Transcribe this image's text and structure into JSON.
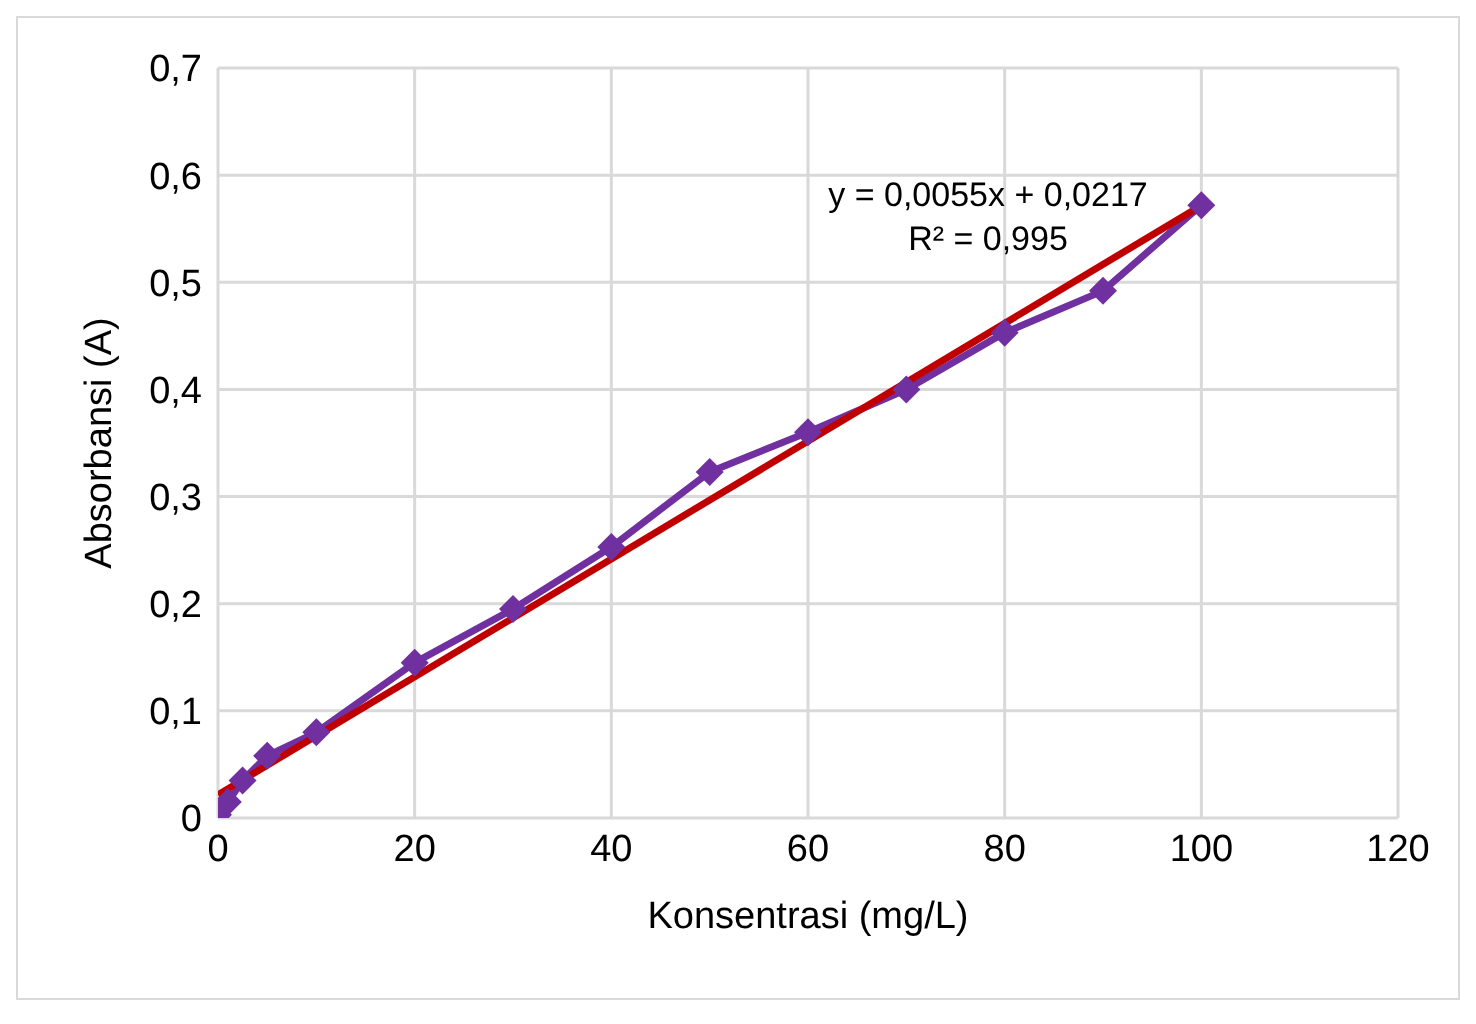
{
  "chart_data": {
    "type": "line",
    "xlabel": "Konsentrasi (mg/L)",
    "ylabel": "Absorbansi (A)",
    "xlim": [
      0,
      120
    ],
    "xticks": [
      0,
      20,
      40,
      60,
      80,
      100,
      120
    ],
    "ylim": [
      0,
      0.7
    ],
    "yticks": [
      0,
      {
        "value": 0.1,
        "label": "0,1"
      },
      {
        "value": 0.2,
        "label": "0,2"
      },
      {
        "value": 0.3,
        "label": "0,3"
      },
      {
        "value": 0.4,
        "label": "0,4"
      },
      {
        "value": 0.5,
        "label": "0,5"
      },
      {
        "value": 0.6,
        "label": "0,6"
      },
      {
        "value": 0.7,
        "label": "0,7"
      }
    ],
    "grid": true,
    "marker": "diamond",
    "line_style": "solid",
    "series": [
      {
        "color": "#7030a0",
        "x": [
          0,
          1,
          2.5,
          5,
          10,
          20,
          30,
          40,
          50,
          60,
          70,
          80,
          90,
          100
        ],
        "values": [
          0.003,
          0.015,
          0.035,
          0.058,
          0.08,
          0.145,
          0.195,
          0.253,
          0.323,
          0.36,
          0.4,
          0.453,
          0.492,
          0.572
        ]
      },
      {
        "type": "line",
        "marker": "none",
        "color": "#c00000",
        "x": [
          0,
          100
        ],
        "values": [
          0.0217,
          0.5717
        ]
      }
    ],
    "annotations": [
      "y = 0,0055x + 0,0217",
      "R² = 0,995"
    ]
  }
}
